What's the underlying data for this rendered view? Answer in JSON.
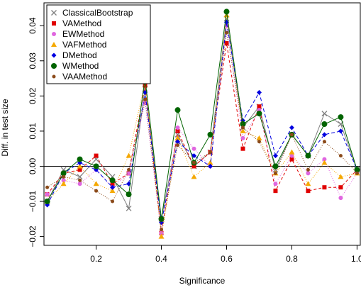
{
  "chart_data": {
    "type": "line",
    "xlabel": "Significance",
    "ylabel": "Diff. in test size",
    "xlim": [
      0.04,
      1.01
    ],
    "ylim": [
      -0.0225,
      0.0465
    ],
    "x_ticks": [
      0.2,
      0.4,
      0.6,
      0.8,
      1.0
    ],
    "x_tick_labels": [
      "0.2",
      "0.4",
      "0.6",
      "0.8",
      "1.0"
    ],
    "y_ticks": [
      -0.02,
      -0.01,
      0.0,
      0.01,
      0.02,
      0.03,
      0.04
    ],
    "y_tick_labels": [
      "−0.02",
      "−0.01",
      "0.00",
      "0.01",
      "0.02",
      "0.03",
      "0.04"
    ],
    "reference_line": 0,
    "legend_position": "top-left",
    "x": [
      0.05,
      0.1,
      0.15,
      0.2,
      0.25,
      0.3,
      0.35,
      0.4,
      0.45,
      0.5,
      0.55,
      0.6,
      0.65,
      0.7,
      0.75,
      0.8,
      0.85,
      0.9,
      0.95,
      1.0
    ],
    "series": [
      {
        "name": "ClassicalBootstrap",
        "color": "#808080",
        "marker": "x",
        "dash": "",
        "values": [
          -0.01,
          -0.001,
          -0.003,
          0.002,
          -0.003,
          -0.012,
          0.022,
          -0.015,
          0.009,
          0.0,
          0.004,
          0.042,
          0.011,
          0.017,
          -0.001,
          0.009,
          0.003,
          0.015,
          0.012,
          -0.001
        ]
      },
      {
        "name": "VAMethod",
        "color": "#e00000",
        "marker": "square",
        "dash": "4,3",
        "values": [
          -0.008,
          -0.002,
          -0.001,
          0.003,
          -0.005,
          -0.002,
          0.023,
          -0.019,
          0.01,
          0.0,
          0.004,
          0.035,
          0.005,
          0.017,
          -0.007,
          0.002,
          -0.007,
          -0.006,
          -0.006,
          -0.001
        ]
      },
      {
        "name": "EWMethod",
        "color": "#e066e0",
        "marker": "circle",
        "dash": "1,2",
        "values": [
          -0.008,
          -0.004,
          -0.005,
          -0.001,
          -0.006,
          -0.002,
          0.018,
          -0.019,
          0.011,
          0.005,
          0.0,
          0.04,
          0.008,
          0.016,
          -0.005,
          0.003,
          -0.002,
          0.002,
          -0.009,
          -0.002
        ]
      },
      {
        "name": "VAFMethod",
        "color": "#f5a800",
        "marker": "triangle",
        "dash": "1,2",
        "values": [
          -0.01,
          -0.005,
          0.0,
          -0.005,
          -0.007,
          0.003,
          0.024,
          -0.02,
          0.008,
          -0.003,
          0.001,
          0.043,
          0.01,
          0.008,
          -0.002,
          0.004,
          -0.005,
          0.001,
          -0.003,
          -0.002
        ]
      },
      {
        "name": "DMethod",
        "color": "#0000e0",
        "marker": "diamond",
        "dash": "5,3",
        "values": [
          -0.011,
          -0.002,
          0.001,
          -0.001,
          -0.006,
          -0.005,
          0.021,
          -0.016,
          0.007,
          0.003,
          0.0,
          0.041,
          0.013,
          0.021,
          0.003,
          0.011,
          0.003,
          0.009,
          0.01,
          -0.001
        ]
      },
      {
        "name": "WMethod",
        "color": "#006400",
        "marker": "bigcircle",
        "dash": "",
        "values": [
          -0.01,
          -0.002,
          0.002,
          0.0,
          -0.004,
          -0.008,
          0.025,
          -0.015,
          0.016,
          0.001,
          0.009,
          0.044,
          0.012,
          0.015,
          0.0,
          0.009,
          0.003,
          0.012,
          0.014,
          -0.001
        ]
      },
      {
        "name": "VAAMethod",
        "color": "#8b4a1a",
        "marker": "smallcircle",
        "dash": "1,2",
        "values": [
          -0.006,
          -0.003,
          -0.004,
          -0.007,
          -0.01,
          -0.001,
          0.019,
          -0.018,
          0.006,
          0.001,
          0.004,
          0.038,
          0.011,
          0.007,
          -0.002,
          0.009,
          -0.001,
          0.007,
          0.003,
          -0.002
        ]
      }
    ]
  }
}
